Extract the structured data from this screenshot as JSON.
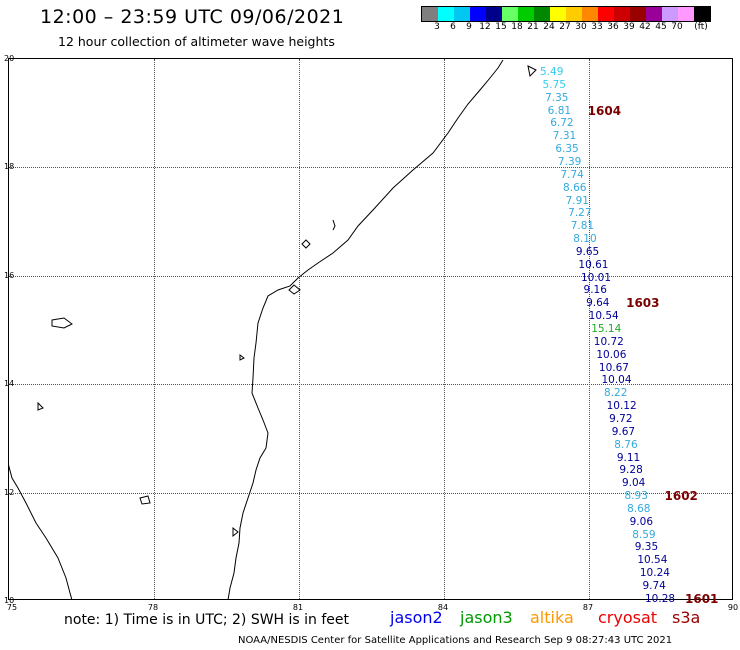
{
  "header": {
    "title": "12:00 – 23:59 UTC 09/06/2021",
    "subtitle": "12 hour collection of altimeter wave heights"
  },
  "color_scale": {
    "colors": [
      "#7f7f7f",
      "#00ffff",
      "#00c8f0",
      "#0000ff",
      "#00008b",
      "#66ff66",
      "#00cc00",
      "#008800",
      "#ffff00",
      "#ffcc00",
      "#ff8800",
      "#ff0000",
      "#cc0000",
      "#990000",
      "#990099",
      "#cc99ff",
      "#ff99ff",
      "#000000"
    ],
    "labels": [
      "3",
      "6",
      "9",
      "12",
      "15",
      "18",
      "21",
      "24",
      "27",
      "30",
      "33",
      "36",
      "39",
      "42",
      "45",
      "70",
      "(ft)"
    ]
  },
  "axes": {
    "y_labels": [
      "20",
      "18",
      "16",
      "14",
      "12",
      "10"
    ],
    "x_labels": [
      "75",
      "78",
      "81",
      "84",
      "87",
      "90"
    ]
  },
  "measurements": [
    {
      "v": "5.49",
      "c": "#33ccee"
    },
    {
      "v": "5.75",
      "c": "#33ccee"
    },
    {
      "v": "7.35",
      "c": "#33aadd"
    },
    {
      "v": "6.81",
      "c": "#33aadd"
    },
    {
      "v": "6.72",
      "c": "#33aadd"
    },
    {
      "v": "7.31",
      "c": "#33aadd"
    },
    {
      "v": "6.35",
      "c": "#33aadd"
    },
    {
      "v": "7.39",
      "c": "#33aadd"
    },
    {
      "v": "7.74",
      "c": "#33aadd"
    },
    {
      "v": "8.66",
      "c": "#33aadd"
    },
    {
      "v": "7.91",
      "c": "#33aadd"
    },
    {
      "v": "7.27",
      "c": "#33aadd"
    },
    {
      "v": "7.81",
      "c": "#33aadd"
    },
    {
      "v": "8.10",
      "c": "#33aadd"
    },
    {
      "v": "9.65",
      "c": "#000099"
    },
    {
      "v": "10.61",
      "c": "#000099"
    },
    {
      "v": "10.01",
      "c": "#000099"
    },
    {
      "v": "9.16",
      "c": "#000099"
    },
    {
      "v": "9.64",
      "c": "#000099"
    },
    {
      "v": "10.54",
      "c": "#000099"
    },
    {
      "v": "15.14",
      "c": "#22aa22"
    },
    {
      "v": "10.72",
      "c": "#000099"
    },
    {
      "v": "10.06",
      "c": "#000099"
    },
    {
      "v": "10.67",
      "c": "#000099"
    },
    {
      "v": "10.04",
      "c": "#000099"
    },
    {
      "v": "8.22",
      "c": "#33aadd"
    },
    {
      "v": "10.12",
      "c": "#000099"
    },
    {
      "v": "9.72",
      "c": "#000099"
    },
    {
      "v": "9.67",
      "c": "#000099"
    },
    {
      "v": "8.76",
      "c": "#33aadd"
    },
    {
      "v": "9.11",
      "c": "#000099"
    },
    {
      "v": "9.28",
      "c": "#000099"
    },
    {
      "v": "9.04",
      "c": "#000099"
    },
    {
      "v": "8.93",
      "c": "#33aadd"
    },
    {
      "v": "8.68",
      "c": "#33aadd"
    },
    {
      "v": "9.06",
      "c": "#000099"
    },
    {
      "v": "8.59",
      "c": "#33aadd"
    },
    {
      "v": "9.35",
      "c": "#000099"
    },
    {
      "v": "10.54",
      "c": "#000099"
    },
    {
      "v": "10.24",
      "c": "#000099"
    },
    {
      "v": "9.74",
      "c": "#000099"
    },
    {
      "v": "10.28",
      "c": "#000099"
    }
  ],
  "cycle_labels": [
    {
      "text": "1604",
      "row": 3
    },
    {
      "text": "1603",
      "row": 18
    },
    {
      "text": "1602",
      "row": 33
    },
    {
      "text": "1601",
      "row": 41
    }
  ],
  "footer": {
    "note": "note: 1) Time is in UTC; 2) SWH is in feet",
    "satellites": [
      {
        "name": "jason2",
        "color": "#0000ee"
      },
      {
        "name": "jason3",
        "color": "#009900"
      },
      {
        "name": "altika",
        "color": "#ff9900"
      },
      {
        "name": "cryosat",
        "color": "#ee0000"
      },
      {
        "name": "s3a",
        "color": "#990000"
      }
    ],
    "credit": "NOAA/NESDIS Center for Satellite Applications and Research    Sep  9 08:27:43 UTC 2021"
  }
}
